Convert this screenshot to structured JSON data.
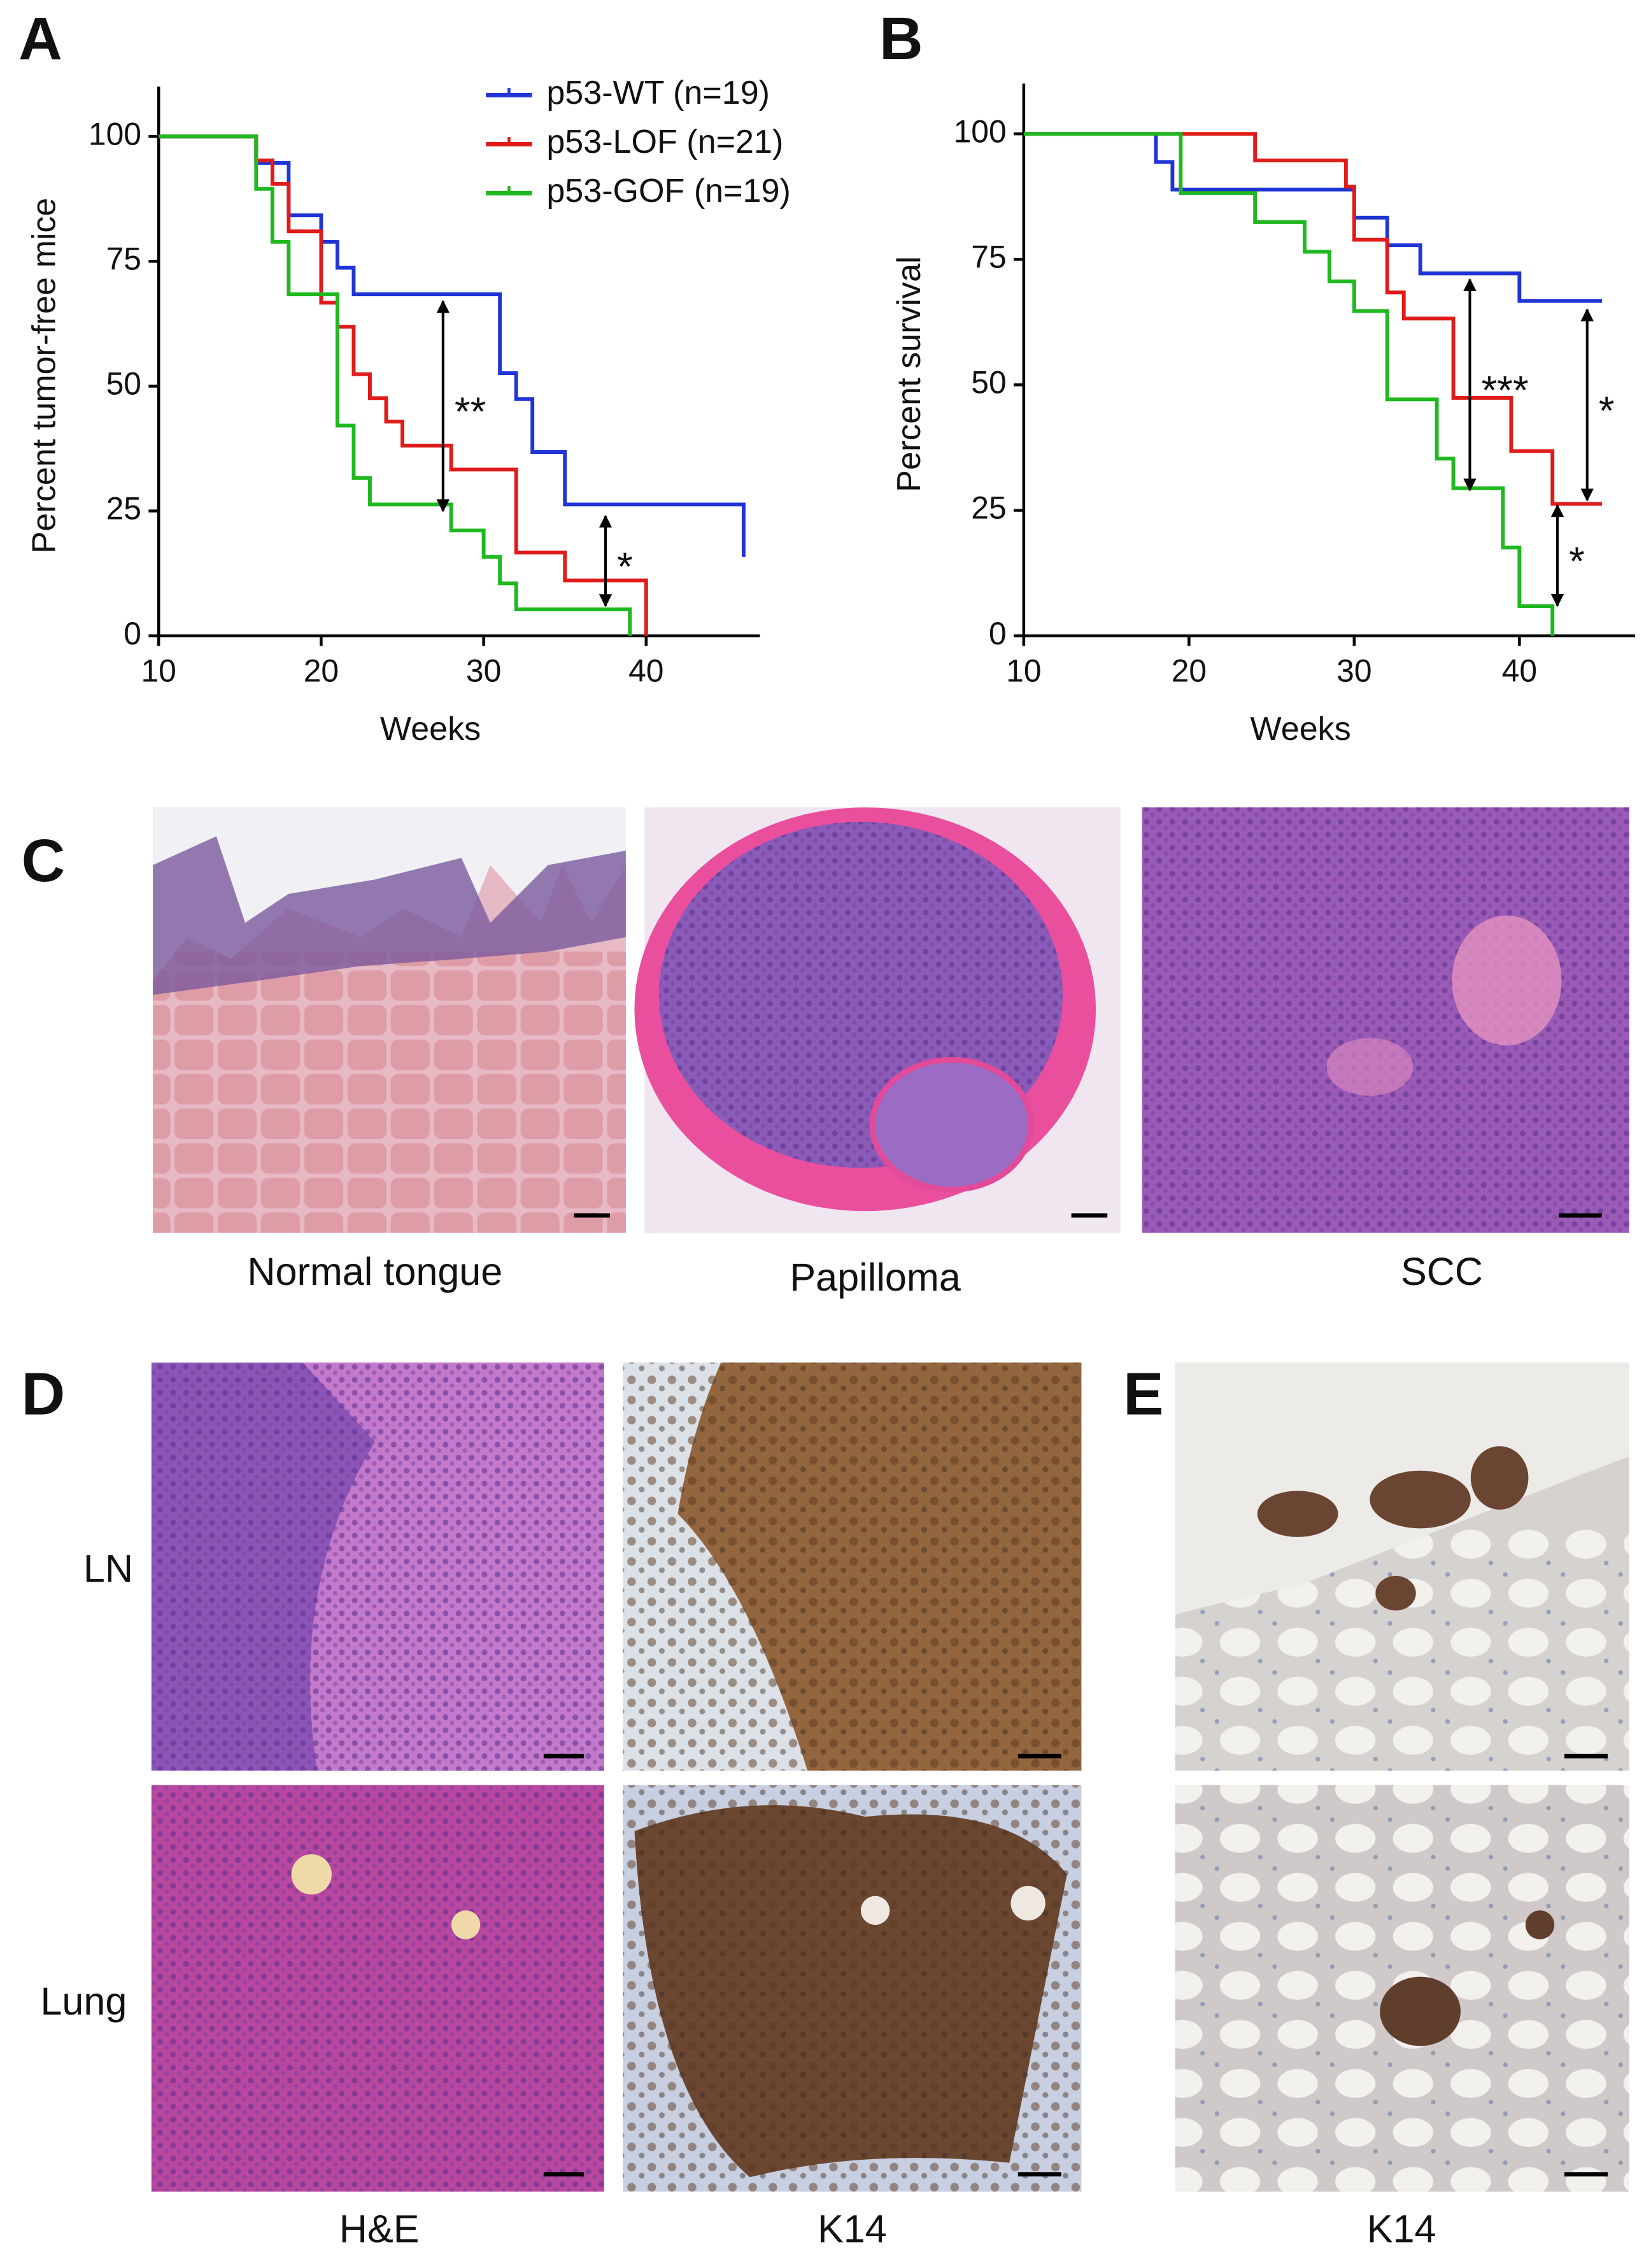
{
  "chart_data": [
    {
      "type": "step",
      "label": "A",
      "xlabel": "Weeks",
      "ylabel": "Percent tumor-free mice",
      "xlim": [
        10,
        47
      ],
      "ylim": [
        0,
        110
      ],
      "xticks": [
        10,
        20,
        30,
        40
      ],
      "yticks": [
        0,
        25,
        50,
        75,
        100
      ],
      "legend": "top-right",
      "series": [
        {
          "name": "p53-WT (n=19)",
          "color": "#1f35d6",
          "x": [
            10,
            16,
            18,
            20,
            21,
            22,
            31,
            32,
            33,
            35,
            46
          ],
          "values": [
            100,
            94.7,
            84.2,
            78.9,
            73.7,
            68.4,
            52.6,
            47.4,
            36.8,
            26.3,
            15.8
          ]
        },
        {
          "name": "p53-LOF (n=21)",
          "color": "#e01b1b",
          "x": [
            10,
            16,
            17,
            18,
            20,
            21,
            22,
            23,
            24,
            25,
            28,
            32,
            35,
            40
          ],
          "values": [
            100,
            95.2,
            90.5,
            81,
            66.7,
            61.9,
            52.4,
            47.6,
            42.9,
            38.1,
            33.3,
            16.7,
            11.1,
            0
          ]
        },
        {
          "name": "p53-GOF (n=19)",
          "color": "#1fb81f",
          "x": [
            10,
            16,
            17,
            18,
            21,
            22,
            23,
            28,
            30,
            31,
            32,
            39
          ],
          "values": [
            100,
            89.5,
            78.9,
            68.4,
            42.1,
            31.6,
            26.3,
            21.1,
            15.8,
            10.5,
            5.3,
            0
          ]
        }
      ],
      "annotations": [
        {
          "text": "**",
          "x": 27.5,
          "y": [
            67,
            25
          ]
        },
        {
          "text": "*",
          "x": 37.5,
          "y": [
            24,
            6
          ]
        }
      ]
    },
    {
      "type": "step",
      "label": "B",
      "xlabel": "Weeks",
      "ylabel": "Percent survival",
      "xlim": [
        10,
        47
      ],
      "ylim": [
        0,
        110
      ],
      "xticks": [
        10,
        20,
        30,
        40
      ],
      "yticks": [
        0,
        25,
        50,
        75,
        100
      ],
      "series": [
        {
          "color": "#1f35d6",
          "x": [
            10,
            18,
            19,
            30,
            32,
            34,
            40,
            45
          ],
          "values": [
            100,
            94.4,
            88.9,
            83.3,
            77.8,
            72.2,
            66.7,
            66.7
          ]
        },
        {
          "color": "#e01b1b",
          "x": [
            10,
            24,
            29.5,
            30,
            32,
            33,
            36,
            39.5,
            42,
            45
          ],
          "values": [
            100,
            94.7,
            89.5,
            78.9,
            68.4,
            63.2,
            47.4,
            36.8,
            26.3,
            26.3
          ]
        },
        {
          "color": "#1fb81f",
          "x": [
            10,
            19.5,
            24,
            27,
            28.5,
            30,
            32,
            35,
            36,
            39,
            40,
            42
          ],
          "values": [
            100,
            88.2,
            82.4,
            76.5,
            70.6,
            64.7,
            47.1,
            35.3,
            29.4,
            17.6,
            5.9,
            0
          ]
        }
      ],
      "annotations": [
        {
          "text": "***",
          "x": 37,
          "y": [
            71,
            29
          ]
        },
        {
          "text": "*",
          "x": 44.1,
          "y": [
            65,
            27
          ]
        },
        {
          "text": "*",
          "x": 42.3,
          "y": [
            26,
            6
          ]
        }
      ]
    }
  ],
  "histology": {
    "C": {
      "label": "C",
      "captions": [
        "Normal tongue",
        "Papilloma",
        "SCC"
      ]
    },
    "D": {
      "label": "D",
      "rows": [
        "LN",
        "Lung"
      ],
      "columns": [
        "H&E",
        "K14"
      ]
    },
    "E": {
      "label": "E",
      "columns": [
        "K14"
      ]
    }
  }
}
